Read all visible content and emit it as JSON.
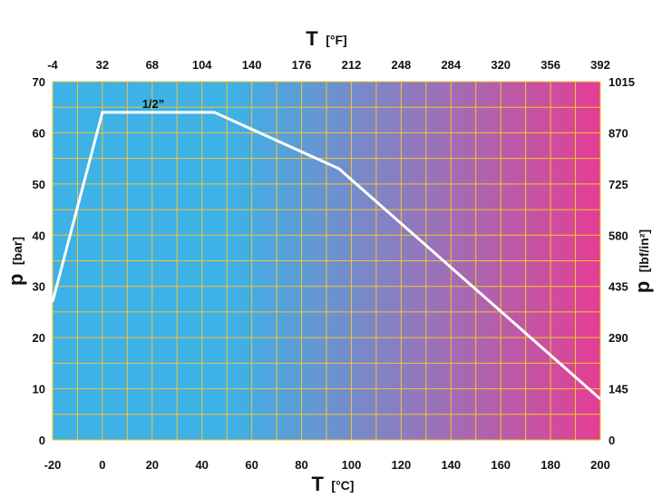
{
  "chart_data": {
    "type": "line",
    "title": "",
    "series": [
      {
        "name": "1/2”",
        "x": [
          -20,
          0,
          45,
          95,
          200
        ],
        "y": [
          27,
          64,
          64,
          53,
          8
        ]
      }
    ],
    "bottom_axis": {
      "symbol": "T",
      "unit": "[°C]",
      "range": [
        -20,
        200
      ],
      "ticks": [
        "-20",
        "0",
        "20",
        "40",
        "60",
        "80",
        "100",
        "120",
        "140",
        "160",
        "180",
        "200"
      ]
    },
    "top_axis": {
      "symbol": "T",
      "unit": "[°F]",
      "ticks": [
        "-4",
        "32",
        "68",
        "104",
        "140",
        "176",
        "212",
        "248",
        "284",
        "320",
        "356",
        "392"
      ]
    },
    "left_axis": {
      "symbol": "p",
      "unit": "[bar]",
      "range": [
        0,
        70
      ],
      "ticks": [
        "0",
        "10",
        "20",
        "30",
        "40",
        "50",
        "60",
        "70"
      ]
    },
    "right_axis": {
      "symbol": "p",
      "unit": "[lbf/in²]",
      "ticks": [
        "0",
        "145",
        "290",
        "435",
        "580",
        "725",
        "870",
        "1015"
      ]
    },
    "grid": true,
    "background_gradient": [
      "#3eb1e6",
      "#e43e93"
    ],
    "grid_color": "#f2c531",
    "line_color": "#ffffff"
  }
}
